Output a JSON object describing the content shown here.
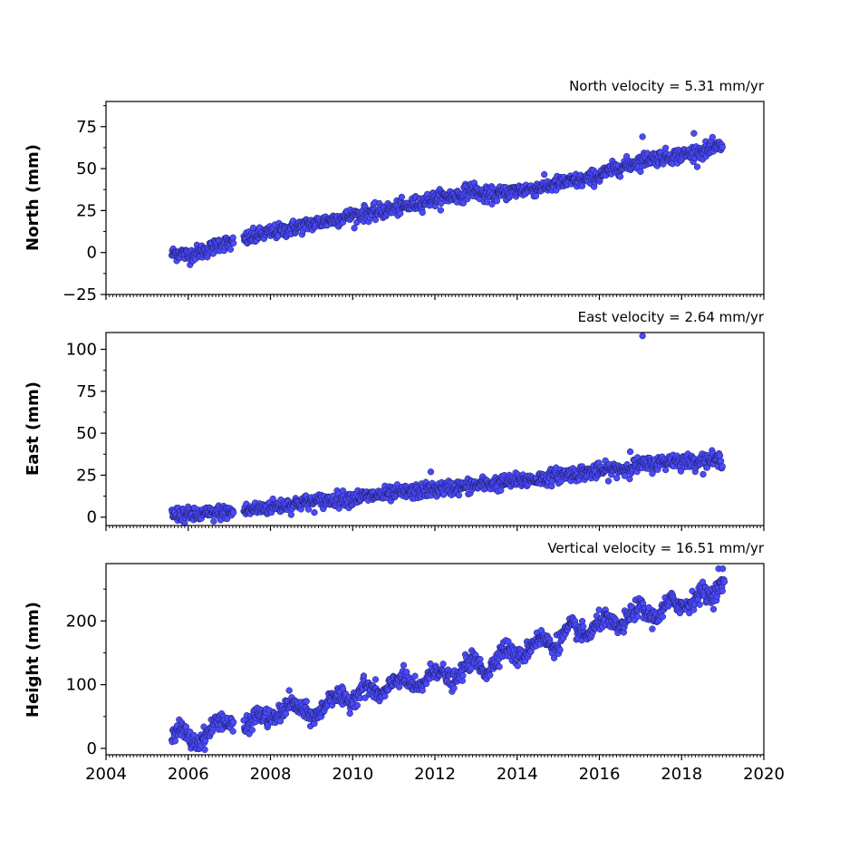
{
  "chart_data": [
    {
      "type": "scatter",
      "panel": "north",
      "title": "North velocity = 5.31 mm/yr",
      "ylabel": "North (mm)",
      "xlim": [
        2004,
        2020
      ],
      "ylim": [
        -25,
        90
      ],
      "yticks": [
        -25,
        0,
        25,
        50,
        75
      ],
      "ytick_labels": [
        "−25",
        "0",
        "25",
        "50",
        "75"
      ],
      "x": [
        2005.6,
        2005.8,
        2006.0,
        2006.2,
        2006.4,
        2006.6,
        2006.8,
        2007.0,
        2007.4,
        2007.7,
        2008.0,
        2008.3,
        2008.6,
        2009.0,
        2009.4,
        2009.8,
        2010.2,
        2010.6,
        2011.0,
        2011.4,
        2011.8,
        2012.2,
        2012.6,
        2012.9,
        2013.2,
        2013.6,
        2014.0,
        2014.4,
        2014.8,
        2015.2,
        2015.6,
        2016.0,
        2016.4,
        2016.8,
        2017.2,
        2017.6,
        2018.0,
        2018.4,
        2018.8,
        2019.0
      ],
      "y": [
        -1,
        0,
        -2,
        0,
        1,
        3,
        6,
        5,
        8,
        10,
        12,
        13,
        15,
        17,
        19,
        21,
        23,
        24,
        26,
        28,
        31,
        33,
        34,
        38,
        34,
        35,
        37,
        38,
        40,
        42,
        43,
        46,
        50,
        53,
        56,
        57,
        58,
        60,
        62,
        64
      ],
      "outliers": [
        {
          "x": 2017.05,
          "y": 69
        },
        {
          "x": 2018.3,
          "y": 71
        }
      ],
      "color": "#4a4aff",
      "edge_color": "#1a1a55"
    },
    {
      "type": "scatter",
      "panel": "east",
      "title": "East velocity = 2.64 mm/yr",
      "ylabel": "East (mm)",
      "xlim": [
        2004,
        2020
      ],
      "ylim": [
        -5,
        110
      ],
      "yticks": [
        0,
        25,
        50,
        75,
        100
      ],
      "ytick_labels": [
        "0",
        "25",
        "50",
        "75",
        "100"
      ],
      "x": [
        2005.6,
        2005.8,
        2006.0,
        2006.2,
        2006.4,
        2006.6,
        2006.8,
        2007.0,
        2007.4,
        2007.7,
        2008.0,
        2008.3,
        2008.6,
        2009.0,
        2009.4,
        2009.8,
        2010.2,
        2010.6,
        2011.0,
        2011.4,
        2011.8,
        2012.2,
        2012.6,
        2013.0,
        2013.4,
        2013.8,
        2014.2,
        2014.6,
        2015.0,
        2015.4,
        2015.8,
        2016.2,
        2016.6,
        2017.0,
        2017.4,
        2017.8,
        2018.2,
        2018.6,
        2019.0
      ],
      "y": [
        1,
        2,
        1,
        1,
        2,
        2,
        3,
        3,
        4,
        5,
        6,
        7,
        8,
        9,
        10,
        11,
        12,
        13,
        14,
        15,
        16,
        17,
        18,
        19,
        20,
        21,
        22,
        23,
        25,
        26,
        27,
        28,
        29,
        31,
        32,
        34,
        33,
        34,
        34
      ],
      "outliers": [
        {
          "x": 2017.05,
          "y": 108
        },
        {
          "x": 2011.9,
          "y": 27
        },
        {
          "x": 2016.75,
          "y": 39
        }
      ],
      "color": "#4a4aff",
      "edge_color": "#1a1a55"
    },
    {
      "type": "scatter",
      "panel": "height",
      "title": "Vertical velocity = 16.51 mm/yr",
      "ylabel": "Height (mm)",
      "xlim": [
        2004,
        2020
      ],
      "ylim": [
        -10,
        290
      ],
      "yticks": [
        0,
        100,
        200
      ],
      "ytick_labels": [
        "0",
        "100",
        "200"
      ],
      "xticks": [
        2004,
        2006,
        2008,
        2010,
        2012,
        2014,
        2016,
        2018,
        2020
      ],
      "xtick_labels": [
        "2004",
        "2006",
        "2008",
        "2010",
        "2012",
        "2014",
        "2016",
        "2018",
        "2020"
      ],
      "x": [
        2005.6,
        2005.75,
        2005.9,
        2006.05,
        2006.2,
        2006.35,
        2006.5,
        2006.65,
        2006.8,
        2006.95,
        2007.4,
        2007.55,
        2007.7,
        2007.85,
        2008.0,
        2008.15,
        2008.3,
        2008.45,
        2008.6,
        2008.75,
        2008.9,
        2009.05,
        2009.2,
        2009.35,
        2009.5,
        2009.65,
        2009.8,
        2009.95,
        2010.1,
        2010.25,
        2010.4,
        2010.55,
        2010.7,
        2010.85,
        2011.0,
        2011.15,
        2011.3,
        2011.45,
        2011.6,
        2011.75,
        2011.9,
        2012.05,
        2012.2,
        2012.35,
        2012.5,
        2012.65,
        2012.8,
        2012.95,
        2013.1,
        2013.25,
        2013.4,
        2013.55,
        2013.7,
        2013.85,
        2014.0,
        2014.15,
        2014.3,
        2014.45,
        2014.6,
        2014.75,
        2014.9,
        2015.05,
        2015.2,
        2015.35,
        2015.5,
        2015.65,
        2015.8,
        2015.95,
        2016.1,
        2016.25,
        2016.4,
        2016.55,
        2016.7,
        2016.85,
        2017.0,
        2017.15,
        2017.3,
        2017.45,
        2017.6,
        2017.75,
        2017.9,
        2018.05,
        2018.2,
        2018.35,
        2018.5,
        2018.65,
        2018.8,
        2018.95,
        2019.05
      ],
      "y": [
        22,
        30,
        28,
        12,
        8,
        15,
        25,
        40,
        48,
        38,
        30,
        45,
        55,
        50,
        45,
        48,
        60,
        72,
        68,
        60,
        55,
        48,
        55,
        70,
        85,
        82,
        75,
        72,
        85,
        98,
        96,
        88,
        82,
        92,
        105,
        112,
        108,
        98,
        92,
        105,
        118,
        126,
        118,
        108,
        104,
        120,
        135,
        140,
        128,
        118,
        130,
        148,
        158,
        152,
        142,
        145,
        158,
        170,
        175,
        165,
        158,
        170,
        185,
        192,
        184,
        176,
        182,
        195,
        205,
        198,
        190,
        192,
        205,
        218,
        222,
        212,
        205,
        208,
        222,
        232,
        228,
        222,
        228,
        238,
        246,
        240,
        242,
        256,
        262
      ],
      "outliers": [
        {
          "x": 2018.9,
          "y": 282
        },
        {
          "x": 2019.0,
          "y": 282
        }
      ],
      "color": "#4a4aff",
      "edge_color": "#1a1a55"
    }
  ]
}
